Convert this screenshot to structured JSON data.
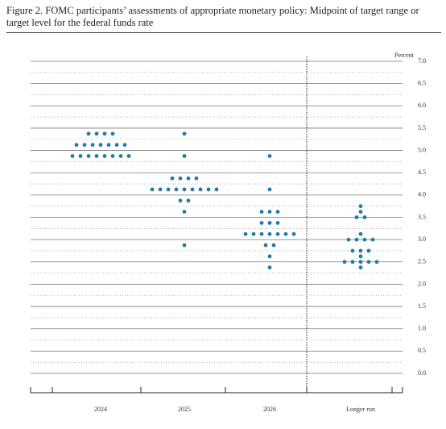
{
  "chart_data": {
    "type": "dot",
    "title": "Figure 2.  FOMC participants’ assessments of appropriate monetary policy:  Midpoint of target range or target level for the federal funds rate",
    "y_label": "Percent",
    "categories": [
      "2024",
      "2025",
      "2026",
      "Longer run"
    ],
    "values": [
      [
        5.375,
        5.375,
        5.375,
        5.375,
        5.125,
        5.125,
        5.125,
        5.125,
        5.125,
        5.125,
        5.125,
        4.875,
        4.875,
        4.875,
        4.875,
        4.875,
        4.875,
        4.875,
        4.875
      ],
      [
        5.375,
        4.875,
        4.375,
        4.375,
        4.375,
        4.375,
        4.125,
        4.125,
        4.125,
        4.125,
        4.125,
        4.125,
        4.125,
        4.125,
        4.125,
        3.875,
        3.875,
        3.625,
        2.875
      ],
      [
        4.875,
        4.125,
        3.625,
        3.625,
        3.625,
        3.375,
        3.375,
        3.375,
        3.125,
        3.125,
        3.125,
        3.125,
        3.125,
        3.125,
        3.125,
        2.875,
        2.875,
        2.625,
        2.375
      ],
      [
        3.75,
        3.625,
        3.5,
        3.5,
        3.125,
        3,
        3,
        3,
        3,
        2.75,
        2.75,
        2.75,
        2.625,
        2.5,
        2.5,
        2.5,
        2.5,
        2.5,
        2.375
      ]
    ],
    "color": "#1f7ba6",
    "ylim": [
      0,
      7
    ],
    "yticks": [
      {
        "value": 0,
        "label": "0.0"
      },
      0.5,
      {
        "value": 1,
        "label": "1.0"
      },
      1.5,
      {
        "value": 2,
        "label": "2.0"
      },
      2.5,
      {
        "value": 3,
        "label": "3.0"
      },
      3.5,
      {
        "value": 4,
        "label": "4.0"
      },
      4.5,
      {
        "value": 5,
        "label": "5.0"
      },
      5.5,
      {
        "value": 6,
        "label": "6.0"
      },
      6.5,
      {
        "value": 7,
        "label": "7.0"
      }
    ],
    "grid": true
  }
}
